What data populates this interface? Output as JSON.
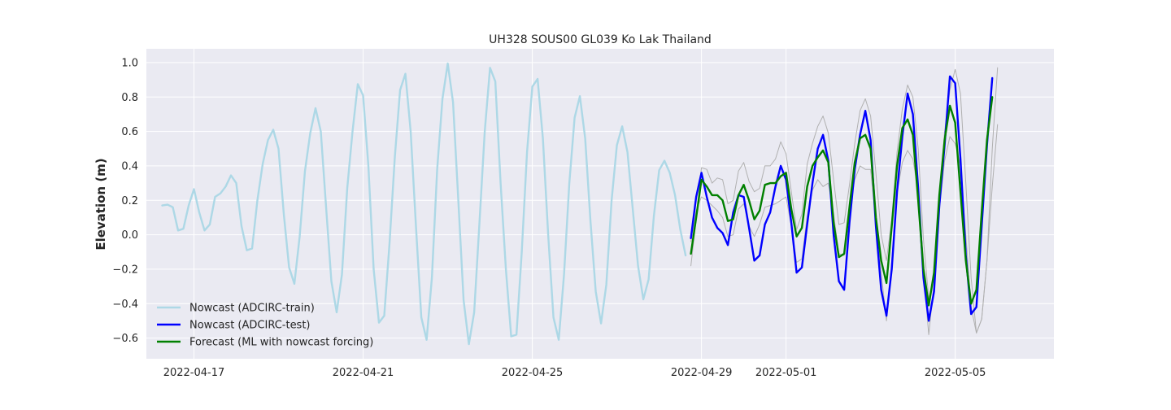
{
  "chart_data": {
    "type": "line",
    "title": "UH328 SOUS00 GL039 Ko Lak Thailand",
    "xlabel": "",
    "ylabel": "Elevation (m)",
    "xlim": [
      "2022-04-15T21:00",
      "2022-05-07T08:00"
    ],
    "ylim": [
      -0.72,
      1.08
    ],
    "x_ticks": [
      "2022-04-17",
      "2022-04-21",
      "2022-04-25",
      "2022-04-29",
      "2022-05-01",
      "2022-05-05"
    ],
    "y_ticks": [
      "-0.6",
      "-0.4",
      "-0.2",
      "0.0",
      "0.2",
      "0.4",
      "0.6",
      "0.8",
      "1.0"
    ],
    "grid": true,
    "background": "#eaeaf2",
    "legend_position": "lower-left",
    "series": [
      {
        "name": "Nowcast (ADCIRC-train)",
        "color": "#add8e6",
        "start": "2022-04-16T06:00",
        "step_hours": 3,
        "values": [
          0.17,
          0.175,
          0.16,
          0.025,
          0.035,
          0.17,
          0.265,
          0.13,
          0.025,
          0.06,
          0.22,
          0.24,
          0.28,
          0.345,
          0.3,
          0.05,
          -0.09,
          -0.08,
          0.2,
          0.41,
          0.55,
          0.61,
          0.5,
          0.12,
          -0.19,
          -0.285,
          -0.01,
          0.37,
          0.59,
          0.735,
          0.6,
          0.16,
          -0.27,
          -0.45,
          -0.23,
          0.27,
          0.6,
          0.875,
          0.81,
          0.4,
          -0.2,
          -0.51,
          -0.47,
          -0.05,
          0.45,
          0.84,
          0.935,
          0.6,
          0.05,
          -0.48,
          -0.61,
          -0.25,
          0.38,
          0.79,
          0.995,
          0.77,
          0.2,
          -0.38,
          -0.635,
          -0.45,
          0.07,
          0.6,
          0.97,
          0.89,
          0.3,
          -0.2,
          -0.59,
          -0.58,
          -0.1,
          0.48,
          0.86,
          0.905,
          0.56,
          0.0,
          -0.48,
          -0.61,
          -0.23,
          0.3,
          0.68,
          0.805,
          0.56,
          0.08,
          -0.33,
          -0.515,
          -0.29,
          0.2,
          0.52,
          0.63,
          0.48,
          0.15,
          -0.18,
          -0.375,
          -0.26,
          0.11,
          0.375,
          0.43,
          0.36,
          0.23,
          0.03,
          -0.12
        ]
      },
      {
        "name": "",
        "color": "#b0b0b0",
        "start": "2022-04-28T18:00",
        "step_hours": 3,
        "values": [
          -0.18,
          0.09,
          0.39,
          0.38,
          0.3,
          0.33,
          0.32,
          0.18,
          0.2,
          0.37,
          0.42,
          0.31,
          0.25,
          0.27,
          0.4,
          0.4,
          0.44,
          0.54,
          0.47,
          0.25,
          0.03,
          0.12,
          0.41,
          0.53,
          0.63,
          0.69,
          0.59,
          0.32,
          0.06,
          0.07,
          0.29,
          0.53,
          0.72,
          0.79,
          0.69,
          0.36,
          0.0,
          -0.15,
          0.09,
          0.48,
          0.73,
          0.87,
          0.8,
          0.5,
          -0.03,
          -0.37,
          -0.25,
          0.21,
          0.6,
          0.84,
          0.96,
          0.82,
          0.3,
          -0.25,
          -0.57,
          -0.49,
          -0.15,
          0.5,
          0.97
        ]
      },
      {
        "name": "",
        "color": "#b0b0b0",
        "start": "2022-04-28T18:00",
        "step_hours": 3,
        "values": [
          -0.04,
          0.14,
          0.22,
          0.2,
          0.17,
          0.14,
          0.1,
          -0.01,
          0.0,
          0.15,
          0.18,
          0.05,
          -0.01,
          0.06,
          0.16,
          0.17,
          0.18,
          0.2,
          0.22,
          0.05,
          -0.16,
          -0.14,
          0.11,
          0.26,
          0.32,
          0.28,
          0.3,
          0.12,
          -0.11,
          -0.12,
          0.14,
          0.32,
          0.4,
          0.38,
          0.38,
          0.07,
          -0.22,
          -0.5,
          -0.15,
          0.24,
          0.42,
          0.49,
          0.44,
          0.25,
          -0.22,
          -0.58,
          -0.28,
          0.14,
          0.43,
          0.57,
          0.53,
          0.4,
          0.0,
          -0.42,
          -0.57,
          -0.49,
          -0.15,
          0.28,
          0.64
        ]
      },
      {
        "name": "Nowcast (ADCIRC-test)",
        "color": "#0000ff",
        "start": "2022-04-28T18:00",
        "step_hours": 3,
        "values": [
          -0.02,
          0.22,
          0.36,
          0.22,
          0.1,
          0.04,
          0.01,
          -0.06,
          0.13,
          0.23,
          0.22,
          0.04,
          -0.15,
          -0.12,
          0.06,
          0.13,
          0.28,
          0.4,
          0.32,
          0.07,
          -0.22,
          -0.19,
          0.06,
          0.3,
          0.5,
          0.58,
          0.43,
          0.0,
          -0.27,
          -0.32,
          0.07,
          0.38,
          0.58,
          0.72,
          0.55,
          0.05,
          -0.32,
          -0.47,
          -0.2,
          0.25,
          0.57,
          0.82,
          0.7,
          0.27,
          -0.25,
          -0.5,
          -0.33,
          0.17,
          0.52,
          0.92,
          0.88,
          0.44,
          -0.12,
          -0.46,
          -0.42,
          0.05,
          0.52,
          0.91
        ]
      },
      {
        "name": "Forecast (ML with nowcast forcing)",
        "color": "#008000",
        "start": "2022-04-28T18:00",
        "step_hours": 3,
        "values": [
          -0.11,
          0.1,
          0.32,
          0.28,
          0.23,
          0.23,
          0.2,
          0.08,
          0.09,
          0.23,
          0.29,
          0.2,
          0.09,
          0.14,
          0.29,
          0.3,
          0.3,
          0.34,
          0.36,
          0.15,
          -0.01,
          0.04,
          0.28,
          0.4,
          0.45,
          0.49,
          0.42,
          0.07,
          -0.13,
          -0.11,
          0.16,
          0.42,
          0.56,
          0.58,
          0.5,
          0.1,
          -0.15,
          -0.28,
          0.05,
          0.4,
          0.62,
          0.67,
          0.58,
          0.2,
          -0.2,
          -0.41,
          -0.22,
          0.23,
          0.55,
          0.75,
          0.65,
          0.25,
          -0.15,
          -0.4,
          -0.32,
          0.13,
          0.55,
          0.8
        ]
      }
    ]
  }
}
